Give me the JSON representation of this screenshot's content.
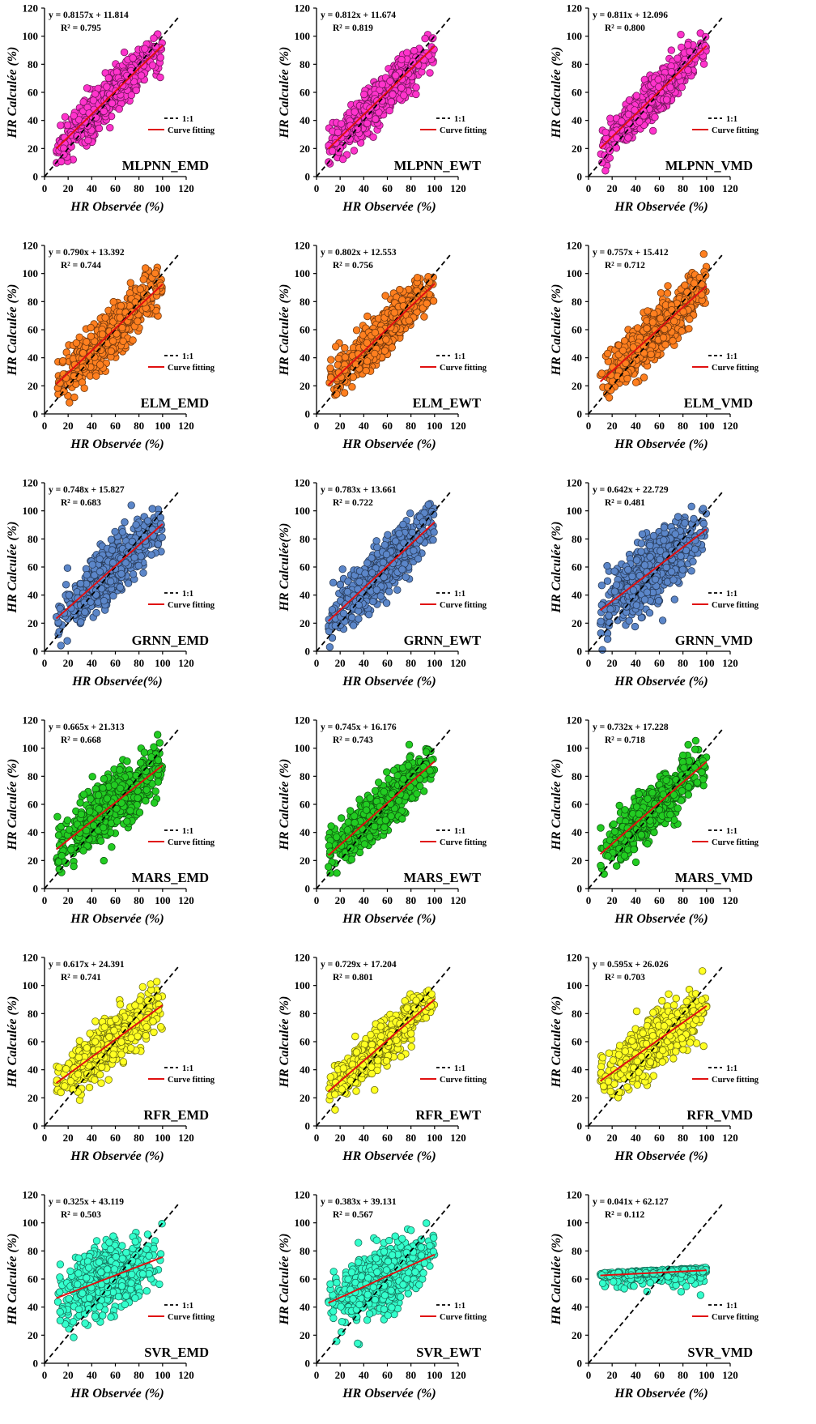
{
  "chart_data": [
    {
      "type": "scatter",
      "panel_label": "MLPNN_EMD",
      "equation": "y = 0.8157x + 11.814",
      "r2": "R² = 0.795",
      "slope": 0.8157,
      "intercept": 11.814,
      "r2_value": 0.795,
      "xlabel": "HR Observée (%)",
      "ylabel": "HR Calculée (%)",
      "xlim": [
        0,
        120
      ],
      "ylim": [
        0,
        120
      ],
      "xticks": [
        "0",
        "20",
        "40",
        "60",
        "80",
        "100",
        "120"
      ],
      "yticks": [
        "0",
        "20",
        "40",
        "60",
        "80",
        "100",
        "120"
      ],
      "legend": [
        "1:1",
        "Curve fitting"
      ],
      "point_color": "#ff33cc",
      "fit_x_range": [
        10,
        100
      ],
      "n_points": 650
    },
    {
      "type": "scatter",
      "panel_label": "MLPNN_EWT",
      "equation": "y = 0.812x + 11.674",
      "r2": "R² = 0.819",
      "slope": 0.812,
      "intercept": 11.674,
      "r2_value": 0.819,
      "xlabel": "HR Observée (%)",
      "ylabel": "HR Calculée (%)",
      "xlim": [
        0,
        120
      ],
      "ylim": [
        0,
        120
      ],
      "xticks": [
        "0",
        "20",
        "40",
        "60",
        "80",
        "100",
        "120"
      ],
      "yticks": [
        "0",
        "20",
        "40",
        "60",
        "80",
        "100",
        "120"
      ],
      "legend": [
        "1:1",
        "Curve fitting"
      ],
      "point_color": "#ff33cc",
      "fit_x_range": [
        10,
        100
      ],
      "n_points": 650
    },
    {
      "type": "scatter",
      "panel_label": "MLPNN_VMD",
      "equation": "y = 0.811x + 12.096",
      "r2": "R² = 0.800",
      "slope": 0.811,
      "intercept": 12.096,
      "r2_value": 0.8,
      "xlabel": "HR Observée (%)",
      "ylabel": "HR Calculée (%)",
      "xlim": [
        0,
        120
      ],
      "ylim": [
        0,
        120
      ],
      "xticks": [
        "0",
        "20",
        "40",
        "60",
        "80",
        "100",
        "120"
      ],
      "yticks": [
        "0",
        "20",
        "40",
        "60",
        "80",
        "100",
        "120"
      ],
      "legend": [
        "1:1",
        "Curve fitting"
      ],
      "point_color": "#ff33cc",
      "fit_x_range": [
        10,
        100
      ],
      "n_points": 650
    },
    {
      "type": "scatter",
      "panel_label": "ELM_EMD",
      "equation": "y = 0.790x + 13.392",
      "r2": "R² = 0.744",
      "slope": 0.79,
      "intercept": 13.392,
      "r2_value": 0.744,
      "xlabel": "HR Observée (%)",
      "ylabel": "HR Calculée (%)",
      "xlim": [
        0,
        120
      ],
      "ylim": [
        0,
        120
      ],
      "xticks": [
        "0",
        "20",
        "40",
        "60",
        "80",
        "100",
        "120"
      ],
      "yticks": [
        "0",
        "20",
        "40",
        "60",
        "80",
        "100",
        "120"
      ],
      "legend": [
        "1:1",
        "Curve fitting"
      ],
      "point_color": "#ff7f1f",
      "fit_x_range": [
        10,
        100
      ],
      "n_points": 650
    },
    {
      "type": "scatter",
      "panel_label": "ELM_EWT",
      "equation": "y = 0.802x + 12.553",
      "r2": "R² = 0.756",
      "slope": 0.802,
      "intercept": 12.553,
      "r2_value": 0.756,
      "xlabel": "HR Observée (%)",
      "ylabel": "HR Calculée (%)",
      "xlim": [
        0,
        120
      ],
      "ylim": [
        0,
        120
      ],
      "xticks": [
        "0",
        "20",
        "40",
        "60",
        "80",
        "100",
        "120"
      ],
      "yticks": [
        "0",
        "20",
        "40",
        "60",
        "80",
        "100",
        "120"
      ],
      "legend": [
        "1:1",
        "Curve fitting"
      ],
      "point_color": "#ff7f1f",
      "fit_x_range": [
        10,
        100
      ],
      "n_points": 650
    },
    {
      "type": "scatter",
      "panel_label": "ELM_VMD",
      "equation": "y = 0.757x + 15.412",
      "r2": "R² = 0.712",
      "slope": 0.757,
      "intercept": 15.412,
      "r2_value": 0.712,
      "xlabel": "HR Observée (%)",
      "ylabel": "HR Calculée (%)",
      "xlim": [
        0,
        120
      ],
      "ylim": [
        0,
        120
      ],
      "xticks": [
        "0",
        "20",
        "40",
        "60",
        "80",
        "100",
        "120"
      ],
      "yticks": [
        "0",
        "20",
        "40",
        "60",
        "80",
        "100",
        "120"
      ],
      "legend": [
        "1:1",
        "Curve fitting"
      ],
      "point_color": "#ff7f1f",
      "fit_x_range": [
        10,
        100
      ],
      "n_points": 650
    },
    {
      "type": "scatter",
      "panel_label": "GRNN_EMD",
      "equation": "y = 0.748x + 15.827",
      "r2": "R² = 0.683",
      "slope": 0.748,
      "intercept": 15.827,
      "r2_value": 0.683,
      "xlabel": "HR Observée(%)",
      "ylabel": "HR Calculée (%)",
      "xlim": [
        0,
        120
      ],
      "ylim": [
        0,
        120
      ],
      "xticks": [
        "0",
        "20",
        "40",
        "60",
        "80",
        "100",
        "120"
      ],
      "yticks": [
        "0",
        "20",
        "40",
        "60",
        "80",
        "100",
        "120"
      ],
      "legend": [
        "1:1",
        "Curve fitting"
      ],
      "point_color": "#5b86c9",
      "fit_x_range": [
        10,
        100
      ],
      "n_points": 650
    },
    {
      "type": "scatter",
      "panel_label": "GRNN_EWT",
      "equation": "y = 0.783x + 13.661",
      "r2": "R² = 0.722",
      "slope": 0.783,
      "intercept": 13.661,
      "r2_value": 0.722,
      "xlabel": "HR Observée (%)",
      "ylabel": "HR Calculée(%)",
      "xlim": [
        0,
        120
      ],
      "ylim": [
        0,
        120
      ],
      "xticks": [
        "0",
        "20",
        "40",
        "60",
        "80",
        "100",
        "120"
      ],
      "yticks": [
        "0",
        "20",
        "40",
        "60",
        "80",
        "100",
        "120"
      ],
      "legend": [
        "1:1",
        "Curve fitting"
      ],
      "point_color": "#5b86c9",
      "fit_x_range": [
        10,
        100
      ],
      "n_points": 650
    },
    {
      "type": "scatter",
      "panel_label": "GRNN_VMD",
      "equation": "y = 0.642x + 22.729",
      "r2": "R² = 0.481",
      "slope": 0.642,
      "intercept": 22.729,
      "r2_value": 0.481,
      "xlabel": "HR Observée (%)",
      "ylabel": "HR Calculée (%)",
      "xlim": [
        0,
        120
      ],
      "ylim": [
        0,
        120
      ],
      "xticks": [
        "0",
        "20",
        "40",
        "60",
        "80",
        "100",
        "120"
      ],
      "yticks": [
        "0",
        "20",
        "40",
        "60",
        "80",
        "100",
        "120"
      ],
      "legend": [
        "1:1",
        "Curve fitting"
      ],
      "point_color": "#5b86c9",
      "fit_x_range": [
        10,
        100
      ],
      "n_points": 650
    },
    {
      "type": "scatter",
      "panel_label": "MARS_EMD",
      "equation": "y = 0.665x + 21.313",
      "r2": "R² = 0.668",
      "slope": 0.665,
      "intercept": 21.313,
      "r2_value": 0.668,
      "xlabel": "HR Observée (%)",
      "ylabel": "HR Calculée (%)",
      "xlim": [
        0,
        120
      ],
      "ylim": [
        0,
        120
      ],
      "xticks": [
        "0",
        "20",
        "40",
        "60",
        "80",
        "100",
        "120"
      ],
      "yticks": [
        "0",
        "20",
        "40",
        "60",
        "80",
        "100",
        "120"
      ],
      "legend": [
        "1:1",
        "Curve fitting"
      ],
      "point_color": "#22cc22",
      "fit_x_range": [
        10,
        100
      ],
      "n_points": 650
    },
    {
      "type": "scatter",
      "panel_label": "MARS_EWT",
      "equation": "y = 0.745x + 16.176",
      "r2": "R² = 0.743",
      "slope": 0.745,
      "intercept": 16.176,
      "r2_value": 0.743,
      "xlabel": "HR Observée (%)",
      "ylabel": "HR Calculée (%)",
      "xlim": [
        0,
        120
      ],
      "ylim": [
        0,
        120
      ],
      "xticks": [
        "0",
        "20",
        "40",
        "60",
        "80",
        "100",
        "120"
      ],
      "yticks": [
        "0",
        "20",
        "40",
        "60",
        "80",
        "100",
        "120"
      ],
      "legend": [
        "1:1",
        "Curve fitting"
      ],
      "point_color": "#22cc22",
      "fit_x_range": [
        10,
        100
      ],
      "n_points": 650
    },
    {
      "type": "scatter",
      "panel_label": "MARS_VMD",
      "equation": "y = 0.732x + 17.228",
      "r2": "R² = 0.718",
      "slope": 0.732,
      "intercept": 17.228,
      "r2_value": 0.718,
      "xlabel": "HR Observée (%)",
      "ylabel": "HR Calculée (%)",
      "xlim": [
        0,
        120
      ],
      "ylim": [
        0,
        120
      ],
      "xticks": [
        "0",
        "20",
        "40",
        "60",
        "80",
        "100",
        "120"
      ],
      "yticks": [
        "0",
        "20",
        "40",
        "60",
        "80",
        "100",
        "120"
      ],
      "legend": [
        "1:1",
        "Curve fitting"
      ],
      "point_color": "#22cc22",
      "fit_x_range": [
        10,
        100
      ],
      "n_points": 650
    },
    {
      "type": "scatter",
      "panel_label": "RFR_EMD",
      "equation": "y = 0.617x + 24.391",
      "r2": "R² = 0.741",
      "slope": 0.617,
      "intercept": 24.391,
      "r2_value": 0.741,
      "xlabel": "HR Observée (%)",
      "ylabel": "HR Calculée (%)",
      "xlim": [
        0,
        120
      ],
      "ylim": [
        0,
        120
      ],
      "xticks": [
        "0",
        "20",
        "40",
        "60",
        "80",
        "100",
        "120"
      ],
      "yticks": [
        "0",
        "20",
        "40",
        "60",
        "80",
        "100",
        "120"
      ],
      "legend": [
        "1:1",
        "Curve fitting"
      ],
      "point_color": "#ffff22",
      "fit_x_range": [
        10,
        100
      ],
      "n_points": 650
    },
    {
      "type": "scatter",
      "panel_label": "RFR_EWT",
      "equation": "y = 0.729x + 17.204",
      "r2": "R² = 0.801",
      "slope": 0.729,
      "intercept": 17.204,
      "r2_value": 0.801,
      "xlabel": "HR Observée (%)",
      "ylabel": "HR Calculée (%)",
      "xlim": [
        0,
        120
      ],
      "ylim": [
        0,
        120
      ],
      "xticks": [
        "0",
        "20",
        "40",
        "60",
        "80",
        "100",
        "120"
      ],
      "yticks": [
        "0",
        "20",
        "40",
        "60",
        "80",
        "100",
        "120"
      ],
      "legend": [
        "1:1",
        "Curve fitting"
      ],
      "point_color": "#ffff22",
      "fit_x_range": [
        10,
        100
      ],
      "n_points": 650
    },
    {
      "type": "scatter",
      "panel_label": "RFR_VMD",
      "equation": "y = 0.595x + 26.026",
      "r2": "R² = 0.703",
      "slope": 0.595,
      "intercept": 26.026,
      "r2_value": 0.703,
      "xlabel": "HR Observée (%)",
      "ylabel": "HR Calculée (%)",
      "xlim": [
        0,
        120
      ],
      "ylim": [
        0,
        120
      ],
      "xticks": [
        "0",
        "20",
        "40",
        "60",
        "80",
        "100",
        "120"
      ],
      "yticks": [
        "0",
        "20",
        "40",
        "60",
        "80",
        "100",
        "120"
      ],
      "legend": [
        "1:1",
        "Curve fitting"
      ],
      "point_color": "#ffff22",
      "fit_x_range": [
        10,
        100
      ],
      "n_points": 650
    },
    {
      "type": "scatter",
      "panel_label": "SVR_EMD",
      "equation": "y = 0.325x + 43.119",
      "r2": "R² = 0.503",
      "slope": 0.325,
      "intercept": 43.119,
      "r2_value": 0.503,
      "xlabel": "HR Observée (%)",
      "ylabel": "HR Calculée (%)",
      "xlim": [
        0,
        120
      ],
      "ylim": [
        0,
        120
      ],
      "xticks": [
        "0",
        "20",
        "40",
        "60",
        "80",
        "100",
        "120"
      ],
      "yticks": [
        "0",
        "20",
        "40",
        "60",
        "80",
        "100",
        "120"
      ],
      "legend": [
        "1:1",
        "Curve fitting"
      ],
      "point_color": "#33ffcc",
      "fit_x_range": [
        10,
        100
      ],
      "n_points": 650
    },
    {
      "type": "scatter",
      "panel_label": "SVR_EWT",
      "equation": "y = 0.383x + 39.131",
      "r2": "R² = 0.567",
      "slope": 0.383,
      "intercept": 39.131,
      "r2_value": 0.567,
      "xlabel": "HR Observée (%)",
      "ylabel": "HR Calculée (%)",
      "xlim": [
        0,
        120
      ],
      "ylim": [
        0,
        120
      ],
      "xticks": [
        "0",
        "20",
        "40",
        "60",
        "80",
        "100",
        "120"
      ],
      "yticks": [
        "0",
        "20",
        "40",
        "60",
        "80",
        "100",
        "120"
      ],
      "legend": [
        "1:1",
        "Curve fitting"
      ],
      "point_color": "#33ffcc",
      "fit_x_range": [
        10,
        100
      ],
      "n_points": 650
    },
    {
      "type": "scatter",
      "panel_label": "SVR_VMD",
      "equation": "y = 0.041x + 62.127",
      "r2": "R² = 0.112",
      "slope": 0.041,
      "intercept": 62.127,
      "r2_value": 0.112,
      "xlabel": "HR Observée (%)",
      "ylabel": "HR Calculée (%)",
      "xlim": [
        0,
        120
      ],
      "ylim": [
        0,
        120
      ],
      "xticks": [
        "0",
        "20",
        "40",
        "60",
        "80",
        "100",
        "120"
      ],
      "yticks": [
        "0",
        "20",
        "40",
        "60",
        "80",
        "100",
        "120"
      ],
      "legend": [
        "1:1",
        "Curve fitting"
      ],
      "point_color": "#33ffcc",
      "fit_x_range": [
        10,
        100
      ],
      "n_points": 450
    }
  ]
}
